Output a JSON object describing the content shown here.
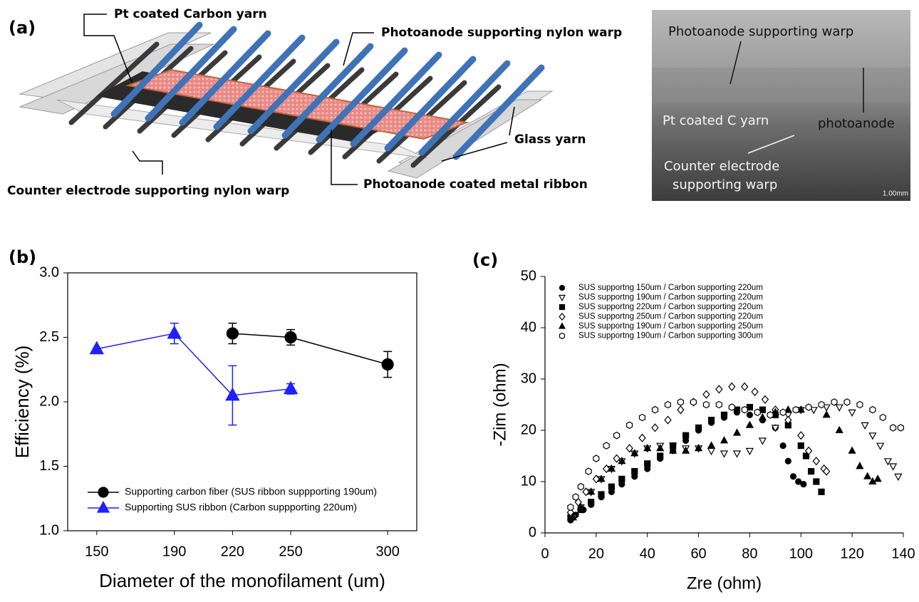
{
  "figure_a": {
    "label": "(a)",
    "callouts": [
      "Pt coated Carbon yarn",
      "Photoanode supporting nylon warp",
      "Glass yarn",
      "Counter electrode supporting nylon warp",
      "Photoanode coated metal ribbon"
    ],
    "sem": {
      "labels": [
        "Photoanode supporting warp",
        "Pt coated C yarn",
        "photoanode",
        "Counter electrode",
        "supporting warp"
      ],
      "scale_bar": "1.00mm"
    }
  },
  "chart_data": [
    {
      "type": "line",
      "label": "(b)",
      "xlabel": "Diameter of the monofilament (um)",
      "ylabel": "Efficiency (%)",
      "xlim": [
        135,
        315
      ],
      "xticks": [
        150,
        190,
        220,
        250,
        300
      ],
      "ylim": [
        1,
        3
      ],
      "yticks": [
        {
          "value": 1,
          "label": "1.0"
        },
        1.5,
        {
          "value": 2,
          "label": "2.0"
        },
        2.5,
        {
          "value": 3,
          "label": "3.0"
        }
      ],
      "legend": "lower left",
      "frame": true,
      "series": [
        {
          "name": "Supporting carbon fiber (SUS ribbon suppporting 190um)",
          "color": "#000000",
          "marker": "filled-circle",
          "x": [
            220,
            250,
            300
          ],
          "values": [
            2.53,
            2.5,
            2.29
          ],
          "errors": [
            0.08,
            0.06,
            0.1
          ]
        },
        {
          "name": "Supporting SUS ribbon (Carbon suppporting 220um)",
          "color": "#1f1fff",
          "marker": "filled-triangle-up",
          "x": [
            150,
            190,
            220,
            250
          ],
          "values": [
            2.41,
            2.53,
            2.05,
            2.1
          ],
          "errors": [
            null,
            0.08,
            0.23,
            0.04
          ]
        }
      ]
    },
    {
      "type": "scatter",
      "label": "(c)",
      "xlabel": "Zre (ohm)",
      "ylabel": "-Zim (ohm)",
      "xlim": [
        0,
        140
      ],
      "xticks": [
        0,
        20,
        40,
        60,
        80,
        100,
        120,
        140
      ],
      "ylim": [
        0,
        50
      ],
      "yticks": [
        0,
        10,
        20,
        30,
        40,
        50
      ],
      "legend": "upper left",
      "frame": false,
      "series": [
        {
          "name": "SUS supportng 150um / Carbon supporting 220um",
          "color": "#000000",
          "marker": "filled-circle",
          "x": [
            10,
            12,
            15,
            18,
            22,
            26,
            30,
            35,
            40,
            45,
            50,
            55,
            60,
            65,
            70,
            75,
            80,
            85,
            90,
            93,
            95,
            97,
            99,
            101
          ],
          "values": [
            2.5,
            3.5,
            4.5,
            5.5,
            7,
            8,
            9.5,
            11,
            12.5,
            14.5,
            16,
            18,
            20,
            21.5,
            22.5,
            23.5,
            23,
            22,
            20.5,
            17,
            14,
            11,
            10,
            9.5
          ]
        },
        {
          "name": "SUS supportng 190um / Carbon supporting 220um",
          "color": "#000000",
          "marker": "open-triangle-down",
          "x": [
            11,
            14,
            18,
            22,
            26,
            30,
            35,
            40,
            45,
            50,
            55,
            60,
            65,
            70,
            75,
            80,
            85,
            90,
            95,
            100,
            105,
            110,
            115,
            120,
            125,
            128,
            131,
            134,
            136,
            138
          ],
          "values": [
            3,
            5,
            8,
            10.5,
            12.5,
            14,
            15.5,
            16.5,
            17,
            17,
            16.5,
            16.5,
            16,
            15.5,
            15.5,
            16,
            18,
            20.5,
            23,
            24,
            24,
            24.5,
            24.5,
            23.5,
            21,
            19,
            17,
            14,
            13,
            11
          ]
        },
        {
          "name": "SUS supportng 220um / Carbon supporting 220um",
          "color": "#000000",
          "marker": "filled-square",
          "x": [
            10,
            14,
            18,
            22,
            26,
            30,
            35,
            40,
            45,
            50,
            55,
            60,
            65,
            70,
            75,
            80,
            85,
            90,
            95,
            100,
            102,
            104,
            106,
            108
          ],
          "values": [
            3,
            4.5,
            6,
            7.5,
            9,
            10.5,
            12,
            13.5,
            15,
            17,
            19,
            20.5,
            22,
            23,
            24,
            24.5,
            24,
            23,
            21,
            17,
            15,
            12,
            10,
            8
          ]
        },
        {
          "name": "SUS supportng 250um / Carbon supporting 220um",
          "color": "#000000",
          "marker": "open-diamond",
          "x": [
            10,
            13,
            16,
            20,
            24,
            28,
            33,
            38,
            43,
            48,
            53,
            58,
            63,
            68,
            73,
            78,
            82,
            86,
            90,
            95,
            100,
            103,
            106,
            109,
            110
          ],
          "values": [
            4,
            6,
            8,
            10.5,
            12.5,
            14.5,
            16.5,
            18.5,
            20.5,
            22,
            24,
            25.5,
            27,
            28,
            28.5,
            28.5,
            27.5,
            26,
            24,
            22,
            19,
            16,
            14,
            12.5,
            12
          ]
        },
        {
          "name": "SUS supportng 190um / Carbon supporting 250um",
          "color": "#000000",
          "marker": "filled-triangle-up",
          "x": [
            11,
            14,
            18,
            22,
            26,
            30,
            35,
            40,
            45,
            50,
            55,
            60,
            65,
            70,
            75,
            80,
            85,
            90,
            95,
            100,
            110,
            115,
            120,
            123,
            126,
            128,
            130
          ],
          "values": [
            3,
            5,
            8,
            10.5,
            12.5,
            14,
            15.5,
            16.5,
            16.5,
            16,
            16,
            16.5,
            17,
            18,
            19.5,
            21,
            22.5,
            23.5,
            24,
            24,
            23,
            20,
            16,
            13,
            11,
            10,
            10.5
          ]
        },
        {
          "name": "SUS supportng 190um / Carbon supporting 300um",
          "color": "#000000",
          "marker": "open-hexagon",
          "x": [
            10,
            12,
            14,
            17,
            20,
            24,
            28,
            33,
            38,
            43,
            48,
            53,
            58,
            63,
            68,
            73,
            78,
            83,
            88,
            93,
            98,
            103,
            108,
            113,
            118,
            123,
            128,
            132,
            136,
            139
          ],
          "values": [
            5,
            7,
            9,
            12,
            14.5,
            17,
            19,
            21,
            22.5,
            24,
            25,
            25.5,
            25.5,
            25,
            25,
            24.5,
            24,
            23.5,
            23,
            23.5,
            24,
            24.5,
            25,
            25.5,
            25.5,
            25,
            24,
            22.5,
            20.5,
            20.5
          ]
        }
      ]
    }
  ]
}
